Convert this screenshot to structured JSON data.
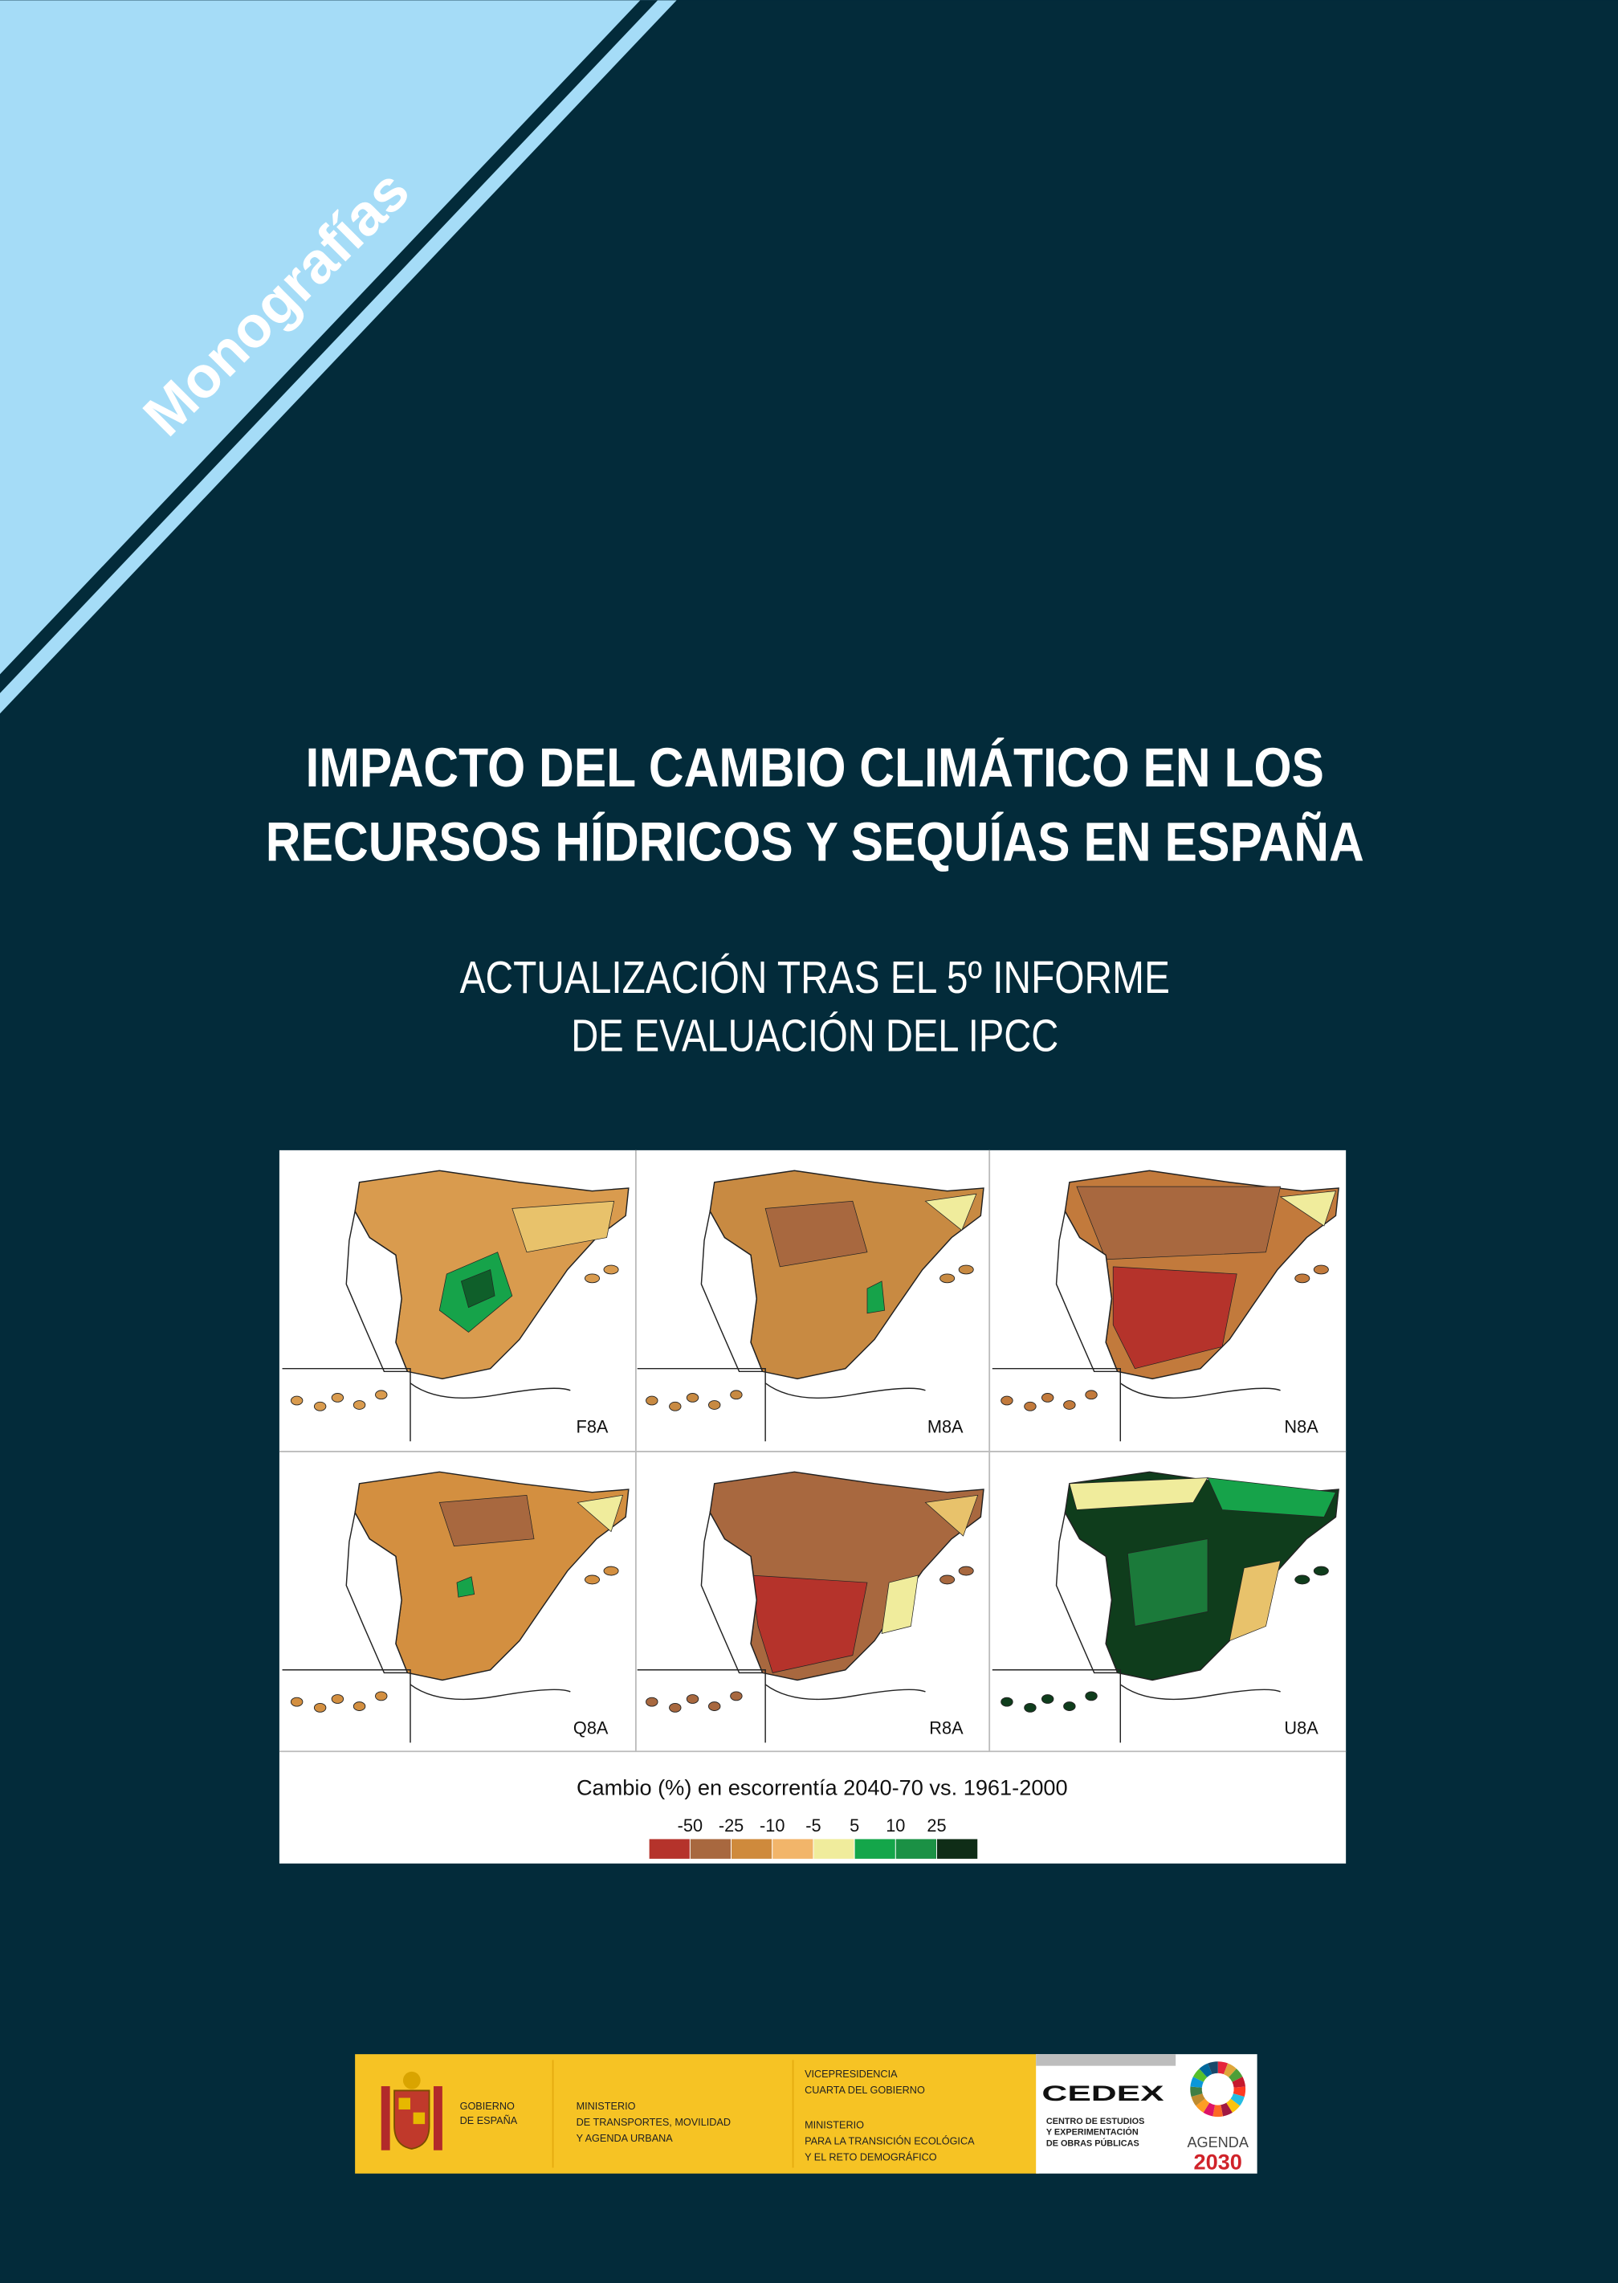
{
  "series_label": "Monografías",
  "title": {
    "lines": [
      "IMPACTO DEL CAMBIO CLIMÁTICO EN LOS",
      "RECURSOS HÍDRICOS Y SEQUÍAS EN ESPAÑA"
    ]
  },
  "subtitle": {
    "lines": [
      "ACTUALIZACIÓN TRAS EL 5º INFORME",
      "DE EVALUACIÓN DEL IPCC"
    ]
  },
  "figure": {
    "panels": [
      "F8A",
      "M8A",
      "N8A",
      "Q8A",
      "R8A",
      "U8A"
    ],
    "caption": "Cambio (%) en escorrentía 2040-70 vs. 1961-2000",
    "legend": {
      "ticks": [
        -50,
        -25,
        -10,
        -5,
        5,
        10,
        25
      ],
      "colors": [
        "#b5332b",
        "#a8683f",
        "#cf8a3c",
        "#f2b56a",
        "#f0ec9c",
        "#14a64a",
        "#1b9145",
        "#0f2d17"
      ]
    }
  },
  "footer": {
    "gobierno": [
      "GOBIERNO",
      "DE ESPAÑA"
    ],
    "ministerio_transportes": [
      "MINISTERIO",
      "DE TRANSPORTES, MOVILIDAD",
      "Y AGENDA URBANA"
    ],
    "vicepresidencia": [
      "VICEPRESIDENCIA",
      "CUARTA DEL GOBIERNO"
    ],
    "ministerio_transicion": [
      "MINISTERIO",
      "PARA LA TRANSICIÓN ECOLÓGICA",
      "Y EL RETO DEMOGRÁFICO"
    ],
    "cedex": "CEDEX",
    "cedex_name": [
      "CENTRO DE ESTUDIOS",
      "Y EXPERIMENTACIÓN",
      "DE OBRAS PÚBLICAS"
    ],
    "agenda": [
      "AGENDA",
      "2030"
    ]
  }
}
